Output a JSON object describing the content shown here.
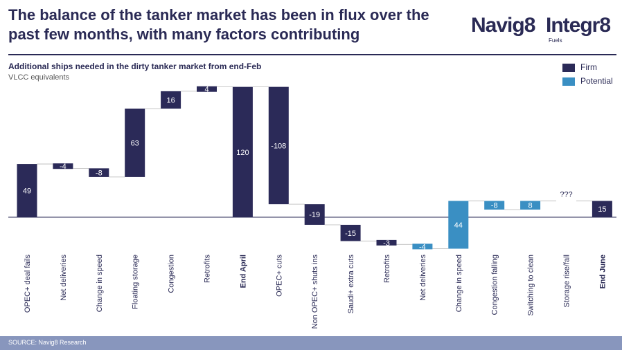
{
  "page": {
    "title": "The balance of the tanker market has been in flux over the past few months, with many factors contributing",
    "source": "SOURCE: Navig8 Research"
  },
  "logo": {
    "part1": "Navig8",
    "part2": "Integr8",
    "sub": "Fuels"
  },
  "colors": {
    "firm": "#2b2a58",
    "potential": "#3a8fc3",
    "axis": "#2a2a55",
    "footer": "#8896bd"
  },
  "chart_data": {
    "type": "waterfall",
    "title": "Additional ships needed in the dirty tanker market from end-Feb",
    "subtitle": "VLCC equivalents",
    "legend": [
      {
        "name": "Firm",
        "color": "#2b2a58"
      },
      {
        "name": "Potential",
        "color": "#3a8fc3"
      }
    ],
    "legend_position": "top-right",
    "grid": false,
    "categories": [
      {
        "label": "OPEC+ deal fails",
        "value": 49,
        "kind": "firm",
        "bold": false,
        "total": false,
        "display": "49"
      },
      {
        "label": "Net deliveries",
        "value": -4,
        "kind": "firm",
        "bold": false,
        "total": false,
        "display": "-4"
      },
      {
        "label": "Change in speed",
        "value": -8,
        "kind": "firm",
        "bold": false,
        "total": false,
        "display": "-8"
      },
      {
        "label": "Floating storage",
        "value": 63,
        "kind": "firm",
        "bold": false,
        "total": false,
        "display": "63"
      },
      {
        "label": "Congestion",
        "value": 16,
        "kind": "firm",
        "bold": false,
        "total": false,
        "display": "16"
      },
      {
        "label": "Retrofits",
        "value": 4,
        "kind": "firm",
        "bold": false,
        "total": false,
        "display": "4"
      },
      {
        "label": "End April",
        "value": 120,
        "kind": "firm",
        "bold": true,
        "total": true,
        "display": "120"
      },
      {
        "label": "OPEC+ cuts",
        "value": -108,
        "kind": "firm",
        "bold": false,
        "total": false,
        "display": "-108"
      },
      {
        "label": "Non OPEC+ shuts ins",
        "value": -19,
        "kind": "firm",
        "bold": false,
        "total": false,
        "display": "-19"
      },
      {
        "label": "Saudi+ extra cuts",
        "value": -15,
        "kind": "firm",
        "bold": false,
        "total": false,
        "display": "-15"
      },
      {
        "label": "Retrofits",
        "value": -3,
        "kind": "firm",
        "bold": false,
        "total": false,
        "display": "-3"
      },
      {
        "label": "Net deliveries",
        "value": -4,
        "kind": "potential",
        "bold": false,
        "total": false,
        "display": "-4"
      },
      {
        "label": "Change in speed",
        "value": 44,
        "kind": "potential",
        "bold": false,
        "total": false,
        "display": "44"
      },
      {
        "label": "Congestion falling",
        "value": -8,
        "kind": "potential",
        "bold": false,
        "total": false,
        "display": "-8"
      },
      {
        "label": "Switching to clean",
        "value": 8,
        "kind": "potential",
        "bold": false,
        "total": false,
        "display": "8"
      },
      {
        "label": "Storage rise/fall",
        "value": 0,
        "kind": "none",
        "bold": false,
        "total": false,
        "display": "???"
      },
      {
        "label": "End June",
        "value": 15,
        "kind": "firm",
        "bold": true,
        "total": true,
        "display": "15"
      }
    ]
  }
}
